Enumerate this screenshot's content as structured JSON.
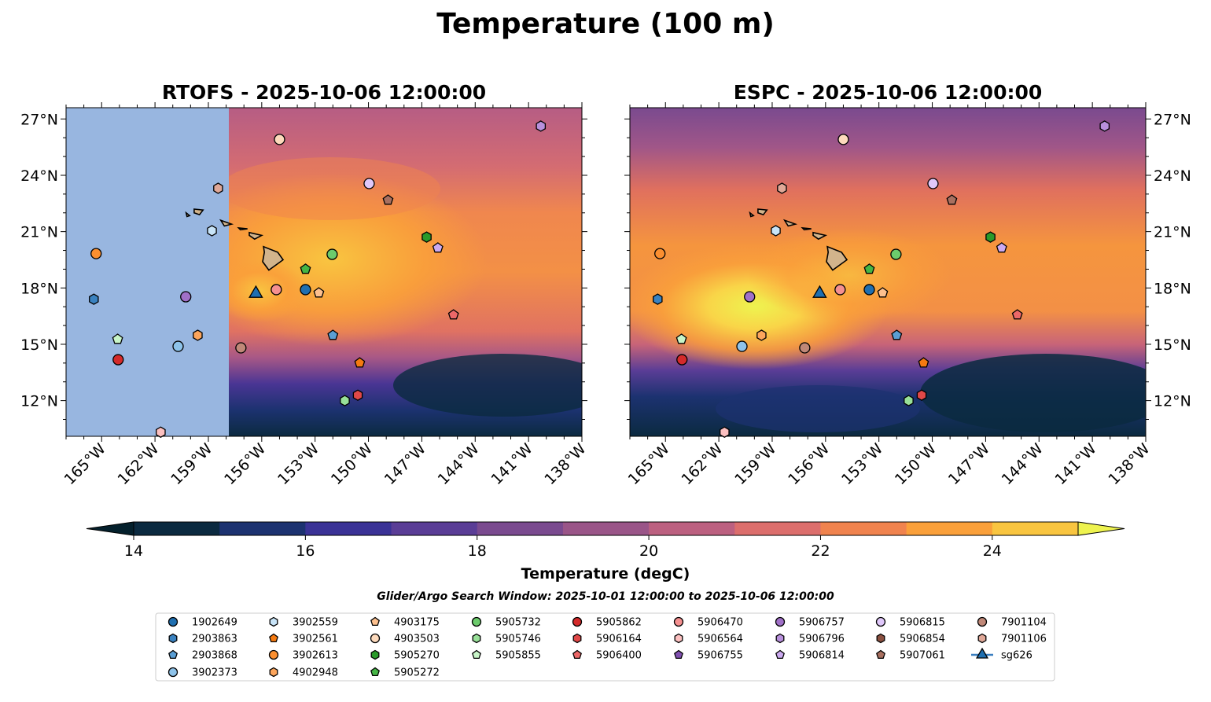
{
  "chart_data": {
    "type": "heatmap",
    "title": "Temperature (100 m)",
    "panels": [
      {
        "title": "RTOFS - 2025-10-06 12:00:00",
        "model": "RTOFS",
        "masked_west_of_lon": -157.9
      },
      {
        "title": "ESPC - 2025-10-06 12:00:00",
        "model": "ESPC"
      }
    ],
    "extent": {
      "lon": [
        -167.0,
        -138.0
      ],
      "lat": [
        10.1,
        27.6
      ]
    },
    "xticks": [
      {
        "v": -165,
        "label": "165°W"
      },
      {
        "v": -162,
        "label": "162°W"
      },
      {
        "v": -159,
        "label": "159°W"
      },
      {
        "v": -156,
        "label": "156°W"
      },
      {
        "v": -153,
        "label": "153°W"
      },
      {
        "v": -150,
        "label": "150°W"
      },
      {
        "v": -147,
        "label": "147°W"
      },
      {
        "v": -144,
        "label": "144°W"
      },
      {
        "v": -141,
        "label": "141°W"
      },
      {
        "v": -138,
        "label": "138°W"
      }
    ],
    "yticks": [
      {
        "v": 12,
        "label": "12°N"
      },
      {
        "v": 15,
        "label": "15°N"
      },
      {
        "v": 18,
        "label": "18°N"
      },
      {
        "v": 21,
        "label": "21°N"
      },
      {
        "v": 24,
        "label": "24°N"
      },
      {
        "v": 27,
        "label": "27°N"
      }
    ],
    "colorbar": {
      "label": "Temperature (degC)",
      "range": [
        14,
        25
      ],
      "levels": [
        14,
        15,
        16,
        17,
        18,
        19,
        20,
        21,
        22,
        23,
        24,
        25
      ],
      "colors": [
        "#0b2a40",
        "#1c3270",
        "#3a3296",
        "#5a3d96",
        "#7a4a8f",
        "#9a5588",
        "#bc6080",
        "#dc6e6c",
        "#f0834e",
        "#faa03a",
        "#f9c540"
      ],
      "under_color": "#04202c",
      "over_color": "#eef34f",
      "ticks": [
        {
          "v": 14,
          "label": "14"
        },
        {
          "v": 16,
          "label": "16"
        },
        {
          "v": 18,
          "label": "18"
        },
        {
          "v": 20,
          "label": "20"
        },
        {
          "v": 22,
          "label": "22"
        },
        {
          "v": 24,
          "label": "24"
        }
      ]
    },
    "subtitle": "Glider/Argo Search Window: 2025-10-01 12:00:00 to 2025-10-06 12:00:00",
    "series": [
      {
        "name": "1902649",
        "marker": "circle",
        "color": "#1f6fb0",
        "lon": -153.54,
        "lat": 17.91
      },
      {
        "name": "2903863",
        "marker": "hexagon",
        "color": "#3a82c0",
        "lon": -165.44,
        "lat": 17.4
      },
      {
        "name": "2903868",
        "marker": "pentagon",
        "color": "#5a9ed4",
        "lon": -152.0,
        "lat": 15.48
      },
      {
        "name": "3902373",
        "marker": "circle",
        "color": "#8ec3ea",
        "lon": -160.7,
        "lat": 14.89
      },
      {
        "name": "3902559",
        "marker": "hexagon",
        "color": "#c8e4f8",
        "lon": -158.8,
        "lat": 21.05
      },
      {
        "name": "3902561",
        "marker": "pentagon",
        "color": "#f57a10",
        "lon": -150.49,
        "lat": 14.01
      },
      {
        "name": "3902613",
        "marker": "circle",
        "color": "#fb8f30",
        "lon": -165.31,
        "lat": 19.83
      },
      {
        "name": "4902948",
        "marker": "hexagon",
        "color": "#fca55c",
        "lon": -159.6,
        "lat": 15.48
      },
      {
        "name": "4903175",
        "marker": "pentagon",
        "color": "#fdc08e",
        "lon": -152.79,
        "lat": 17.74
      },
      {
        "name": "4903503",
        "marker": "circle",
        "color": "#fddabc",
        "lon": -155.0,
        "lat": 25.91
      },
      {
        "name": "5905270",
        "marker": "hexagon",
        "color": "#2a9a2a",
        "lon": -146.73,
        "lat": 20.71
      },
      {
        "name": "5905272",
        "marker": "pentagon",
        "color": "#45b545",
        "lon": -153.54,
        "lat": 19.0
      },
      {
        "name": "5905732",
        "marker": "circle",
        "color": "#6ccb6c",
        "lon": -152.04,
        "lat": 19.79
      },
      {
        "name": "5905746",
        "marker": "hexagon",
        "color": "#98e098",
        "lon": -151.33,
        "lat": 12.0
      },
      {
        "name": "5905855",
        "marker": "pentagon",
        "color": "#c8f5c8",
        "lon": -164.1,
        "lat": 15.27
      },
      {
        "name": "5905862",
        "marker": "circle",
        "color": "#d42a2a",
        "lon": -164.07,
        "lat": 14.18
      },
      {
        "name": "5906164",
        "marker": "hexagon",
        "color": "#e04848",
        "lon": -150.6,
        "lat": 12.29
      },
      {
        "name": "5906400",
        "marker": "pentagon",
        "color": "#ec6868",
        "lon": -145.22,
        "lat": 16.57
      },
      {
        "name": "5906470",
        "marker": "circle",
        "color": "#f59090",
        "lon": -155.18,
        "lat": 17.91
      },
      {
        "name": "5906564",
        "marker": "hexagon",
        "color": "#fcc0c0",
        "lon": -161.68,
        "lat": 10.32
      },
      {
        "name": "5906755",
        "marker": "pentagon",
        "color": "#8050b0",
        "lon": null,
        "lat": null
      },
      {
        "name": "5906757",
        "marker": "circle",
        "color": "#a070c8",
        "lon": -160.27,
        "lat": 17.53
      },
      {
        "name": "5906796",
        "marker": "hexagon",
        "color": "#b890dc",
        "lon": -140.31,
        "lat": 26.62
      },
      {
        "name": "5906814",
        "marker": "pentagon",
        "color": "#ccaaf0",
        "lon": -146.1,
        "lat": 20.13
      },
      {
        "name": "5906815",
        "marker": "circle",
        "color": "#e0c8fa",
        "lon": -149.96,
        "lat": 23.56
      },
      {
        "name": "5906854",
        "marker": "hexagon",
        "color": "#8a5040",
        "lon": null,
        "lat": null
      },
      {
        "name": "5907061",
        "marker": "pentagon",
        "color": "#a87060",
        "lon": -148.9,
        "lat": 22.68
      },
      {
        "name": "7901104",
        "marker": "circle",
        "color": "#c08878",
        "lon": -157.17,
        "lat": 14.81
      },
      {
        "name": "7901106",
        "marker": "hexagon",
        "color": "#e0a898",
        "lon": -158.45,
        "lat": 23.31
      },
      {
        "name": "sg626",
        "marker": "triangle",
        "color": "#1f6fb0",
        "lon": -156.33,
        "lat": 17.7,
        "line": true
      }
    ]
  }
}
